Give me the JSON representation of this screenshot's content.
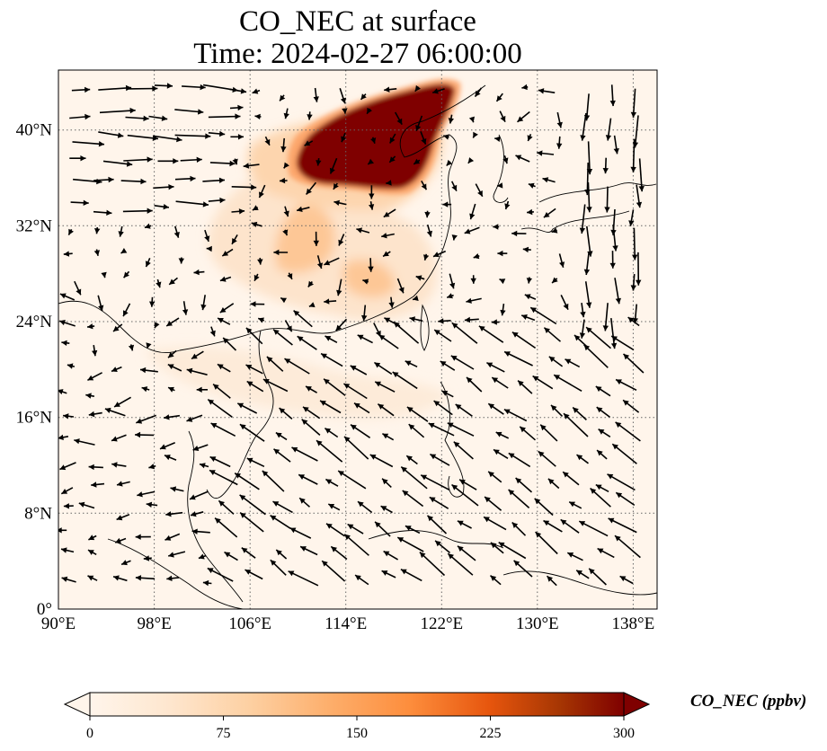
{
  "title": {
    "line1": "CO_NEC at surface",
    "line2": "Time: 2024-02-27 06:00:00"
  },
  "map": {
    "extent": {
      "lon_min": 90,
      "lon_max": 140,
      "lat_min": 0,
      "lat_max": 45
    },
    "lon_ticks": [
      {
        "value": 90,
        "label": "90°E"
      },
      {
        "value": 98,
        "label": "98°E"
      },
      {
        "value": 106,
        "label": "106°E"
      },
      {
        "value": 114,
        "label": "114°E"
      },
      {
        "value": 122,
        "label": "122°E"
      },
      {
        "value": 130,
        "label": "130°E"
      },
      {
        "value": 138,
        "label": "138°E"
      }
    ],
    "lat_ticks": [
      {
        "value": 0,
        "label": "0°"
      },
      {
        "value": 8,
        "label": "8°N"
      },
      {
        "value": 16,
        "label": "16°N"
      },
      {
        "value": 24,
        "label": "24°N"
      },
      {
        "value": 32,
        "label": "32°N"
      },
      {
        "value": 40,
        "label": "40°N"
      }
    ],
    "gridlines": "dotted",
    "plume_color": "#7f0000",
    "wind_arrow_color": "#000000"
  },
  "colorbar": {
    "label": "CO_NEC (ppbv)",
    "min": 0,
    "max": 300,
    "ticks": [
      "0",
      "75",
      "150",
      "225",
      "300"
    ],
    "colors": [
      "#fff5eb",
      "#fee6ce",
      "#fdd0a2",
      "#fdae6b",
      "#fd8d3c",
      "#e6550d",
      "#a63603",
      "#7f0000"
    ],
    "extend": "both"
  }
}
